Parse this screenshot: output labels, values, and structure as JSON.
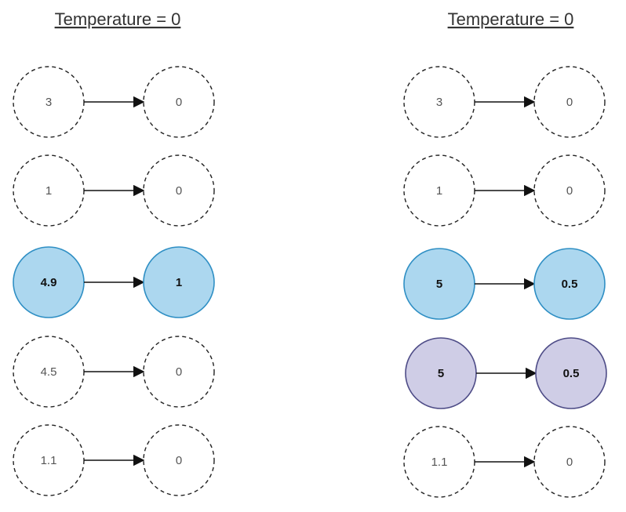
{
  "panels": [
    {
      "title": "Temperature = 0",
      "rows": [
        {
          "input": "3",
          "output": "0",
          "style": "dashed"
        },
        {
          "input": "1",
          "output": "0",
          "style": "dashed"
        },
        {
          "input": "4.9",
          "output": "1",
          "style": "blue"
        },
        {
          "input": "4.5",
          "output": "0",
          "style": "dashed"
        },
        {
          "input": "1.1",
          "output": "0",
          "style": "dashed"
        }
      ]
    },
    {
      "title": "Temperature = 0",
      "rows": [
        {
          "input": "3",
          "output": "0",
          "style": "dashed"
        },
        {
          "input": "1",
          "output": "0",
          "style": "dashed"
        },
        {
          "input": "5",
          "output": "0.5",
          "style": "blue"
        },
        {
          "input": "5",
          "output": "0.5",
          "style": "purple"
        },
        {
          "input": "1.1",
          "output": "0",
          "style": "dashed"
        }
      ]
    }
  ],
  "colors": {
    "blue_fill": "#acd7ef",
    "blue_stroke": "#2f8fc4",
    "purple_fill": "#cfcde6",
    "purple_stroke": "#4e4c87",
    "dashed_stroke": "#222222",
    "arrow": "#111111"
  }
}
